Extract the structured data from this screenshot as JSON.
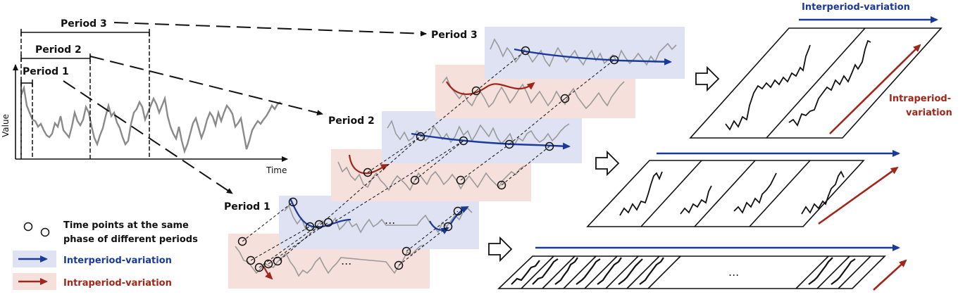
{
  "colors": {
    "interperiod": "#1a3a9a",
    "intraperiod": "#a0261a",
    "panel_blue": "#dfe2f3",
    "panel_red": "#f6e0dc",
    "series": "#8a8a8a"
  },
  "timeline": {
    "y_label": "Value",
    "x_label": "Time",
    "period_labels": [
      "Period 1",
      "Period 2",
      "Period 3"
    ]
  },
  "stacks": {
    "period_labels": [
      "Period 1",
      "Period 2",
      "Period 3"
    ],
    "ellipsis": "..."
  },
  "legend": {
    "points_line1": "Time points at the same",
    "points_line2": "phase of different periods",
    "interperiod": "Interperiod-variation",
    "intraperiod": "Intraperiod-variation"
  },
  "grids": {
    "top_inter": "Interperiod-variation",
    "top_intra_line1": "Intraperiod-",
    "top_intra_line2": "variation",
    "ellipsis": "..."
  }
}
